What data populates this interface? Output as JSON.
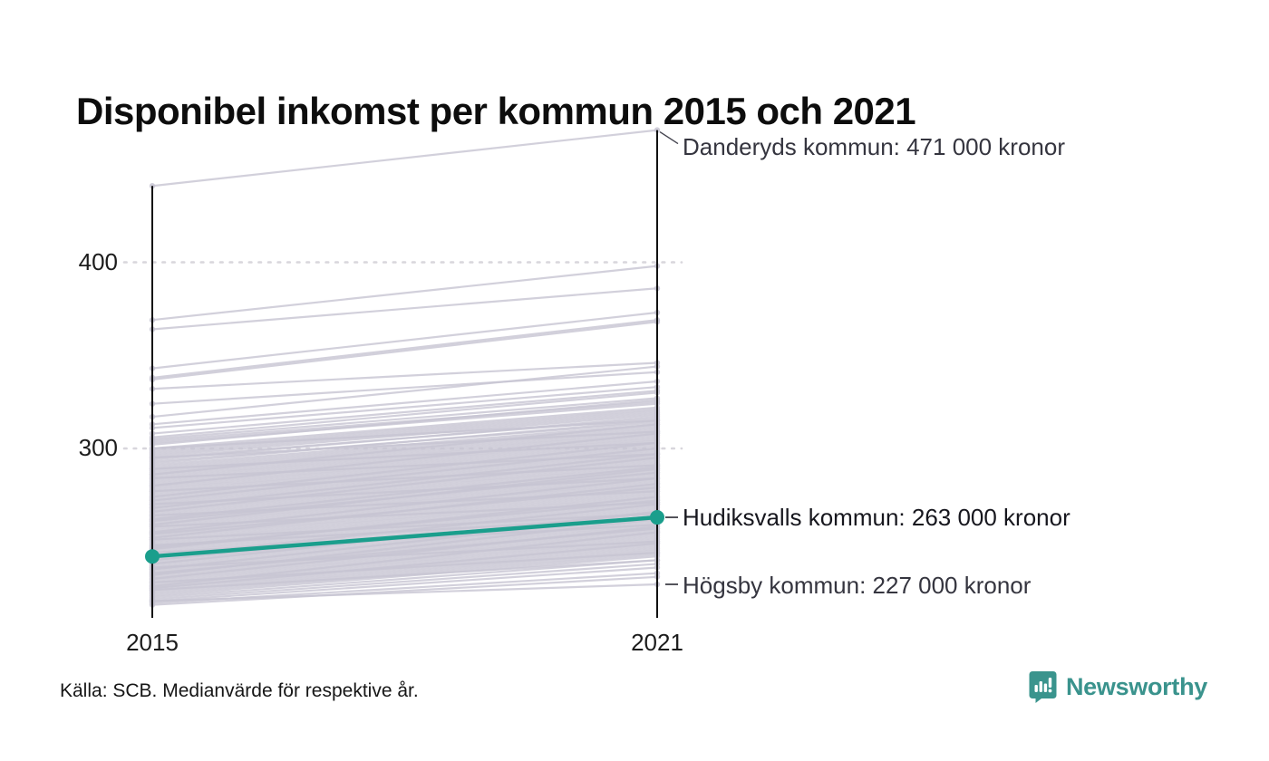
{
  "title": "Disponibel inkomst per kommun 2015 och 2021",
  "source_note": "Källa: SCB. Medianvärde för respektive år.",
  "branding": {
    "logo_text": "Newsworthy",
    "logo_icon": "chart-speech-bubble-icon",
    "logo_color": "#3a938d"
  },
  "colors": {
    "highlight_teal": "#1a9e8c",
    "line_gray": "#c7c4d2",
    "axis_black": "#111111",
    "grid_dot_gray": "#d8d6dc",
    "annotation_text": "#35353f",
    "title_text": "#0d0d0d"
  },
  "chart_data": {
    "type": "line",
    "subtype": "slope-chart",
    "x_categories": [
      "2015",
      "2021"
    ],
    "y_ticks": [
      400,
      300
    ],
    "y_axis_implied_range": [
      210,
      480
    ],
    "unit": "tusen kronor (disponibel inkomst, medianvärde)",
    "grid": "dotted-horizontal",
    "legend_position": "none",
    "highlight_series": {
      "name": "Hudiksvalls kommun",
      "values": [
        242,
        263
      ]
    },
    "annotations": [
      {
        "label": "Danderyds kommun: 471 000 kronor",
        "year": "2021",
        "value": 471,
        "connector": "diagonal",
        "emphasis": false
      },
      {
        "label": "Hudiksvalls kommun: 263 000 kronor",
        "year": "2021",
        "value": 263,
        "connector": "horizontal",
        "emphasis": true
      },
      {
        "label": "Högsby kommun: 227 000 kronor",
        "year": "2021",
        "value": 227,
        "connector": "horizontal",
        "emphasis": false
      }
    ],
    "series_pairs": [
      [
        441,
        471
      ],
      [
        369,
        398
      ],
      [
        364,
        386
      ],
      [
        343,
        373
      ],
      [
        338,
        369
      ],
      [
        337,
        368
      ],
      [
        332,
        346
      ],
      [
        324,
        341
      ],
      [
        317,
        344
      ],
      [
        313,
        336
      ],
      [
        311,
        333
      ],
      [
        308,
        331
      ],
      [
        305,
        327
      ],
      [
        303,
        324
      ],
      [
        299,
        321
      ],
      [
        297,
        319
      ],
      [
        294,
        317
      ],
      [
        292,
        315
      ],
      [
        306,
        330
      ],
      [
        304,
        325
      ],
      [
        302,
        326
      ],
      [
        300,
        322
      ],
      [
        298,
        320
      ],
      [
        296,
        318
      ],
      [
        295,
        316
      ],
      [
        293,
        314
      ],
      [
        291,
        313
      ],
      [
        290,
        312
      ],
      [
        289,
        311
      ],
      [
        288,
        310
      ],
      [
        287,
        309
      ],
      [
        286,
        308
      ],
      [
        285,
        307
      ],
      [
        284,
        306
      ],
      [
        283,
        305
      ],
      [
        282,
        304
      ],
      [
        281,
        303
      ],
      [
        280,
        302
      ],
      [
        279,
        301
      ],
      [
        278,
        300
      ],
      [
        277,
        299
      ],
      [
        276,
        298
      ],
      [
        275,
        297
      ],
      [
        274,
        296
      ],
      [
        273,
        295
      ],
      [
        272,
        294
      ],
      [
        271,
        293
      ],
      [
        270,
        292
      ],
      [
        269,
        291
      ],
      [
        268,
        290
      ],
      [
        267,
        289
      ],
      [
        266,
        288
      ],
      [
        265,
        287
      ],
      [
        264,
        286
      ],
      [
        263,
        285
      ],
      [
        262,
        284
      ],
      [
        261,
        283
      ],
      [
        260,
        282
      ],
      [
        259,
        281
      ],
      [
        258,
        280
      ],
      [
        257,
        279
      ],
      [
        256,
        278
      ],
      [
        255,
        277
      ],
      [
        254,
        276
      ],
      [
        253,
        275
      ],
      [
        252,
        274
      ],
      [
        251,
        273
      ],
      [
        250,
        272
      ],
      [
        249,
        271
      ],
      [
        248,
        270
      ],
      [
        247,
        269
      ],
      [
        246,
        268
      ],
      [
        245,
        267
      ],
      [
        244,
        266
      ],
      [
        243,
        265
      ],
      [
        241,
        262
      ],
      [
        240,
        261
      ],
      [
        239,
        260
      ],
      [
        238,
        259
      ],
      [
        237,
        258
      ],
      [
        236,
        257
      ],
      [
        235,
        256
      ],
      [
        234,
        255
      ],
      [
        233,
        254
      ],
      [
        232,
        253
      ],
      [
        231,
        252
      ],
      [
        230,
        251
      ],
      [
        229,
        250
      ],
      [
        228,
        249
      ],
      [
        227,
        248
      ],
      [
        226,
        247
      ],
      [
        225,
        246
      ],
      [
        224,
        245
      ],
      [
        223,
        244
      ],
      [
        222,
        243
      ],
      [
        221,
        242
      ],
      [
        220,
        240
      ],
      [
        219,
        238
      ],
      [
        218,
        236
      ],
      [
        217,
        233
      ],
      [
        216,
        231
      ],
      [
        218,
        227
      ],
      [
        232,
        262
      ],
      [
        238,
        266
      ],
      [
        226,
        255
      ],
      [
        246,
        274
      ],
      [
        252,
        281
      ],
      [
        259,
        289
      ],
      [
        266,
        295
      ],
      [
        272,
        300
      ],
      [
        244,
        259
      ],
      [
        251,
        265
      ],
      [
        258,
        271
      ],
      [
        264,
        277
      ],
      [
        270,
        284
      ],
      [
        277,
        291
      ],
      [
        284,
        297
      ],
      [
        289,
        303
      ],
      [
        295,
        309
      ],
      [
        300,
        315
      ],
      [
        248,
        263
      ],
      [
        236,
        250
      ],
      [
        228,
        244
      ],
      [
        224,
        240
      ],
      [
        262,
        290
      ],
      [
        255,
        284
      ],
      [
        242,
        270
      ],
      [
        235,
        264
      ],
      [
        230,
        258
      ],
      [
        286,
        313
      ],
      [
        280,
        308
      ],
      [
        274,
        303
      ],
      [
        268,
        297
      ],
      [
        261,
        287
      ],
      [
        254,
        279
      ],
      [
        247,
        272
      ],
      [
        240,
        265
      ],
      [
        233,
        257
      ],
      [
        225,
        249
      ]
    ]
  }
}
